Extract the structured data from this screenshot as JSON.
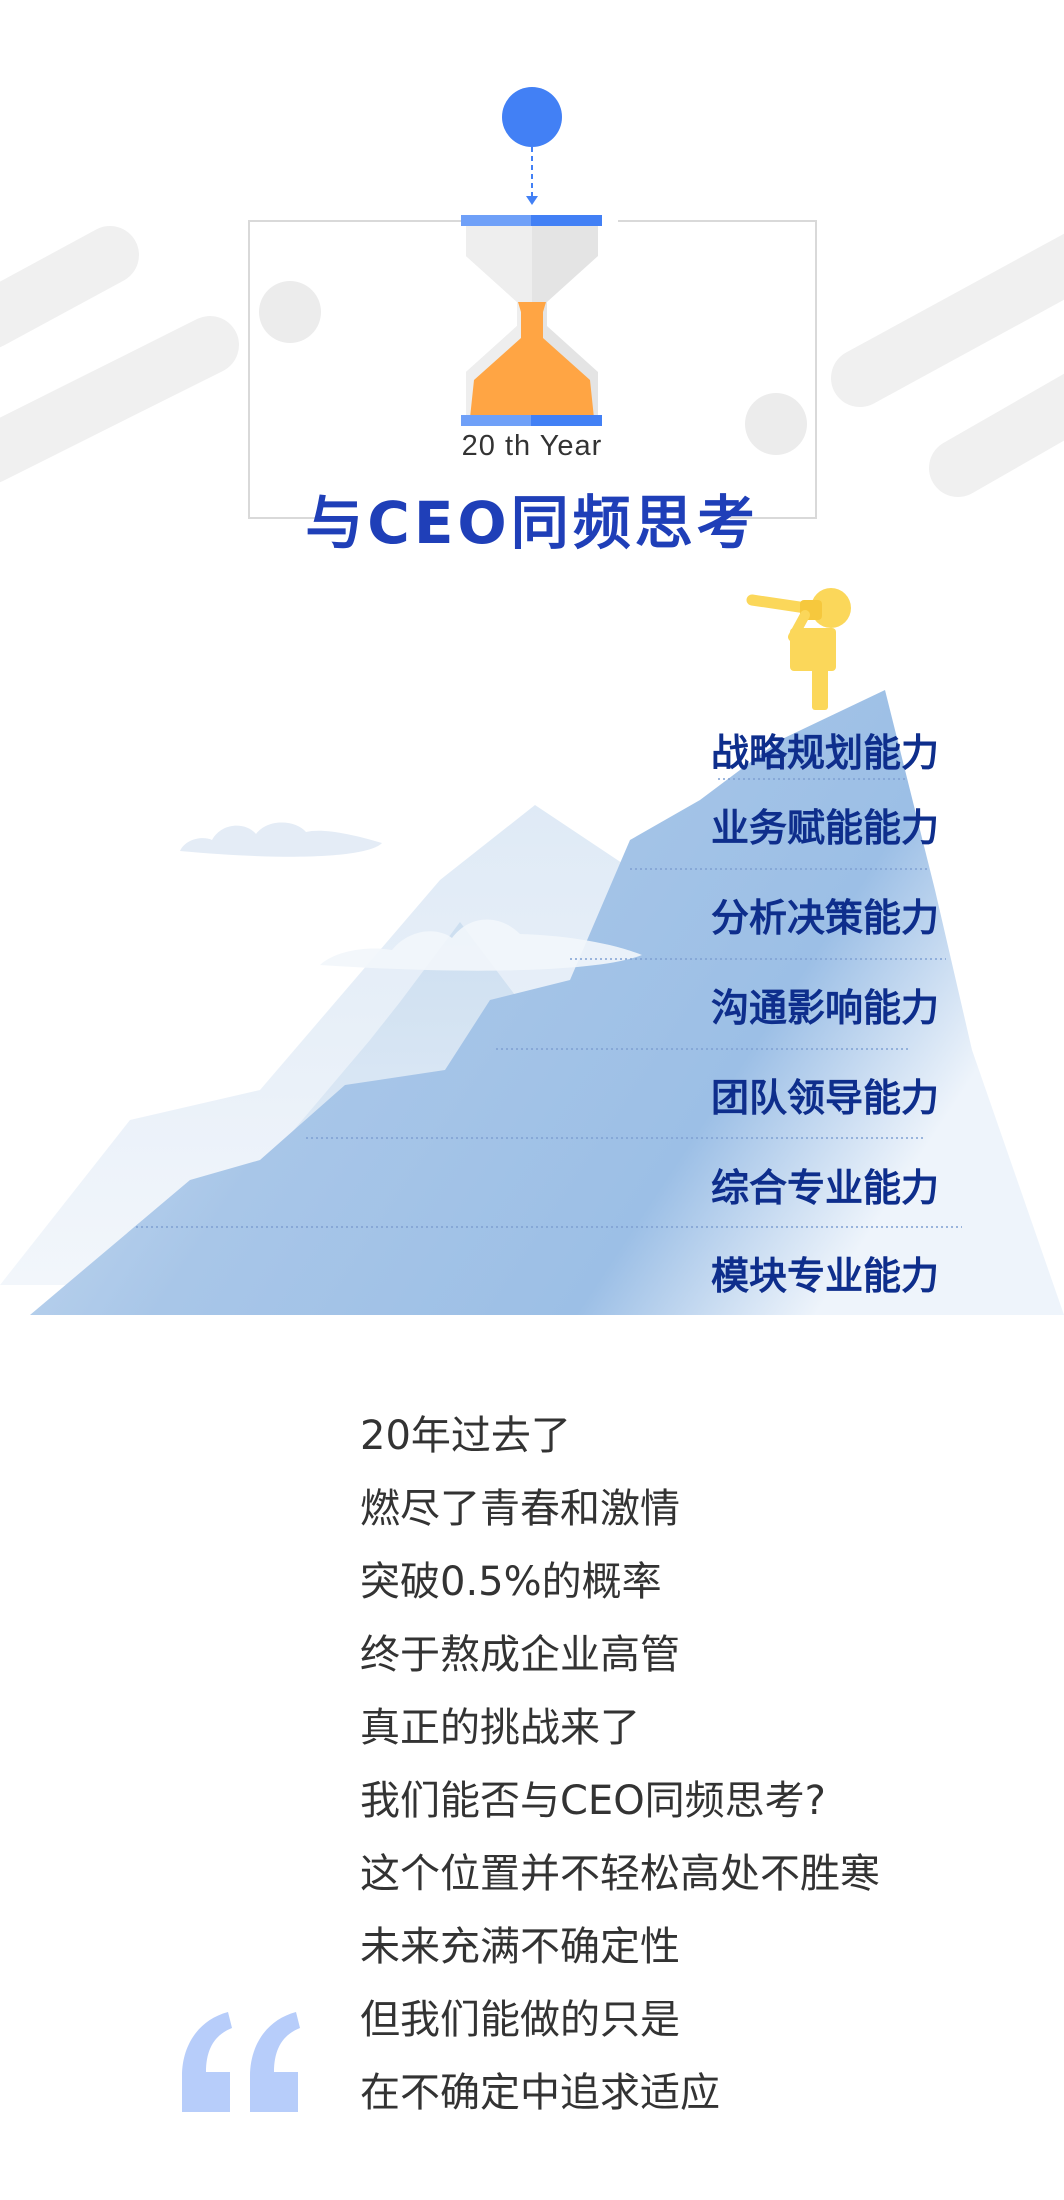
{
  "header": {
    "year_label": "20 th  Year",
    "title": "与CEO同频思考"
  },
  "skills": [
    "战略规划能力",
    "业务赋能能力",
    "分析决策能力",
    "沟通影响能力",
    "团队领导能力",
    "综合专业能力",
    "模块专业能力"
  ],
  "poem": [
    "20年过去了",
    "燃尽了青春和激情",
    "突破0.5%的概率",
    "终于熬成企业高管",
    "真正的挑战来了",
    "我们能否与CEO同频思考?",
    "这个位置并不轻松高处不胜寒",
    "未来充满不确定性",
    "但我们能做的只是",
    "在不确定中追求适应"
  ],
  "colors": {
    "accent_blue": "#4280f5",
    "title_blue": "#1f3fb8",
    "skill_navy": "#0e2e8c",
    "sand_orange": "#ffa544",
    "figure_yellow": "#fbd75a",
    "mountain_blue": "#a9c7e8",
    "quote_blue": "#b7cdfa"
  },
  "icons": {
    "hourglass": "hourglass-icon",
    "telescope_figure": "telescope-figure-icon",
    "quote_mark": "quote-mark-icon"
  }
}
